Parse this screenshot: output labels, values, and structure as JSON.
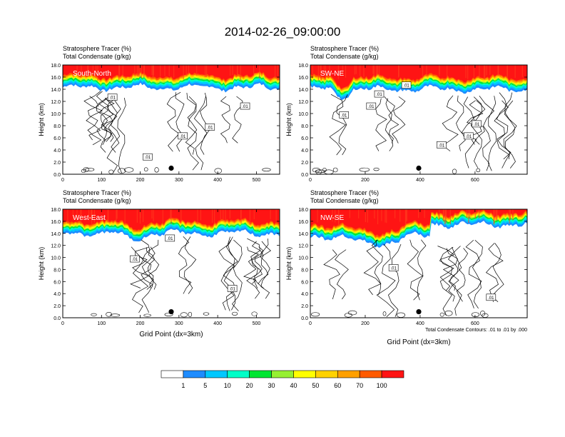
{
  "figure_title": "2014-02-26_09:00:00",
  "chart_data": [
    {
      "type": "heatmap",
      "panel": "top-left",
      "panel_label": "South-North",
      "title_line1": "Stratosphere Tracer   (%)",
      "title_line2": "Total Condensate   (g/kg)",
      "ylabel": "Height (km)",
      "xlabel": "",
      "xlim": [
        0,
        560
      ],
      "ylim": [
        0,
        18
      ],
      "xticks": [
        0,
        100,
        200,
        300,
        400,
        500
      ],
      "yticks": [
        "0.0",
        "2.0",
        "4.0",
        "6.0",
        "8.0",
        "10.0",
        "12.0",
        "14.0",
        "16.0",
        "18.0"
      ],
      "tracer_base_km": 14.3,
      "marker": {
        "x": 280,
        "y": 1.0
      },
      "contour_labels": [
        ".01",
        ".01",
        ".01",
        ".01",
        ".01"
      ]
    },
    {
      "type": "heatmap",
      "panel": "top-right",
      "panel_label": "SW-NE",
      "title_line1": "Stratosphere Tracer   (%)",
      "title_line2": "Total Condensate   (g/kg)",
      "ylabel": "Height (km)",
      "xlabel": "",
      "xlim": [
        0,
        790
      ],
      "ylim": [
        0,
        18
      ],
      "xticks": [
        0,
        200,
        400,
        600
      ],
      "yticks": [
        "0.0",
        "2.0",
        "4.0",
        "6.0",
        "8.0",
        "10.0",
        "12.0",
        "14.0",
        "16.0",
        "18.0"
      ],
      "tracer_base_km": 14.0,
      "marker": {
        "x": 395,
        "y": 1.0
      },
      "contour_labels": [
        ".01",
        ".01",
        ".01",
        ".01",
        ".01",
        ".01",
        ".01"
      ]
    },
    {
      "type": "heatmap",
      "panel": "bottom-left",
      "panel_label": "West-East",
      "title_line1": "Stratosphere Tracer   (%)",
      "title_line2": "Total Condensate   (g/kg)",
      "ylabel": "Height (km)",
      "xlabel": "Grid Point (dx=3km)",
      "xlim": [
        0,
        560
      ],
      "ylim": [
        0,
        18
      ],
      "xticks": [
        0,
        100,
        200,
        300,
        400,
        500
      ],
      "yticks": [
        "0.0",
        "2.0",
        "4.0",
        "6.0",
        "8.0",
        "10.0",
        "12.0",
        "14.0",
        "16.0",
        "18.0"
      ],
      "tracer_base_km": 14.0,
      "marker": {
        "x": 280,
        "y": 1.0
      },
      "contour_labels": [
        ".01",
        ".01",
        ".01"
      ]
    },
    {
      "type": "heatmap",
      "panel": "bottom-right",
      "panel_label": "NW-SE",
      "title_line1": "Stratosphere Tracer   (%)",
      "title_line2": "Total Condensate   (g/kg)",
      "ylabel": "Height (km)",
      "xlabel": "Grid Point (dx=3km)",
      "xlim": [
        0,
        790
      ],
      "ylim": [
        0,
        18
      ],
      "xticks": [
        0,
        200,
        400,
        600
      ],
      "yticks": [
        "0.0",
        "2.0",
        "4.0",
        "6.0",
        "8.0",
        "10.0",
        "12.0",
        "14.0",
        "16.0",
        "18.0"
      ],
      "tracer_base_km": 13.5,
      "marker": {
        "x": 395,
        "y": 1.0
      },
      "contour_labels": [
        ".01",
        ".01"
      ],
      "contour_note": "Total Condensate Contours: .01 to .01 by .000"
    }
  ],
  "colorbar": {
    "colors": [
      "#ffffff",
      "#1e8cff",
      "#00c8ff",
      "#00ffc8",
      "#00e632",
      "#96f032",
      "#ffff00",
      "#ffd200",
      "#ffa000",
      "#ff5a00",
      "#ff1414"
    ],
    "labels": [
      "1",
      "5",
      "10",
      "20",
      "30",
      "40",
      "50",
      "60",
      "70",
      "100"
    ]
  }
}
